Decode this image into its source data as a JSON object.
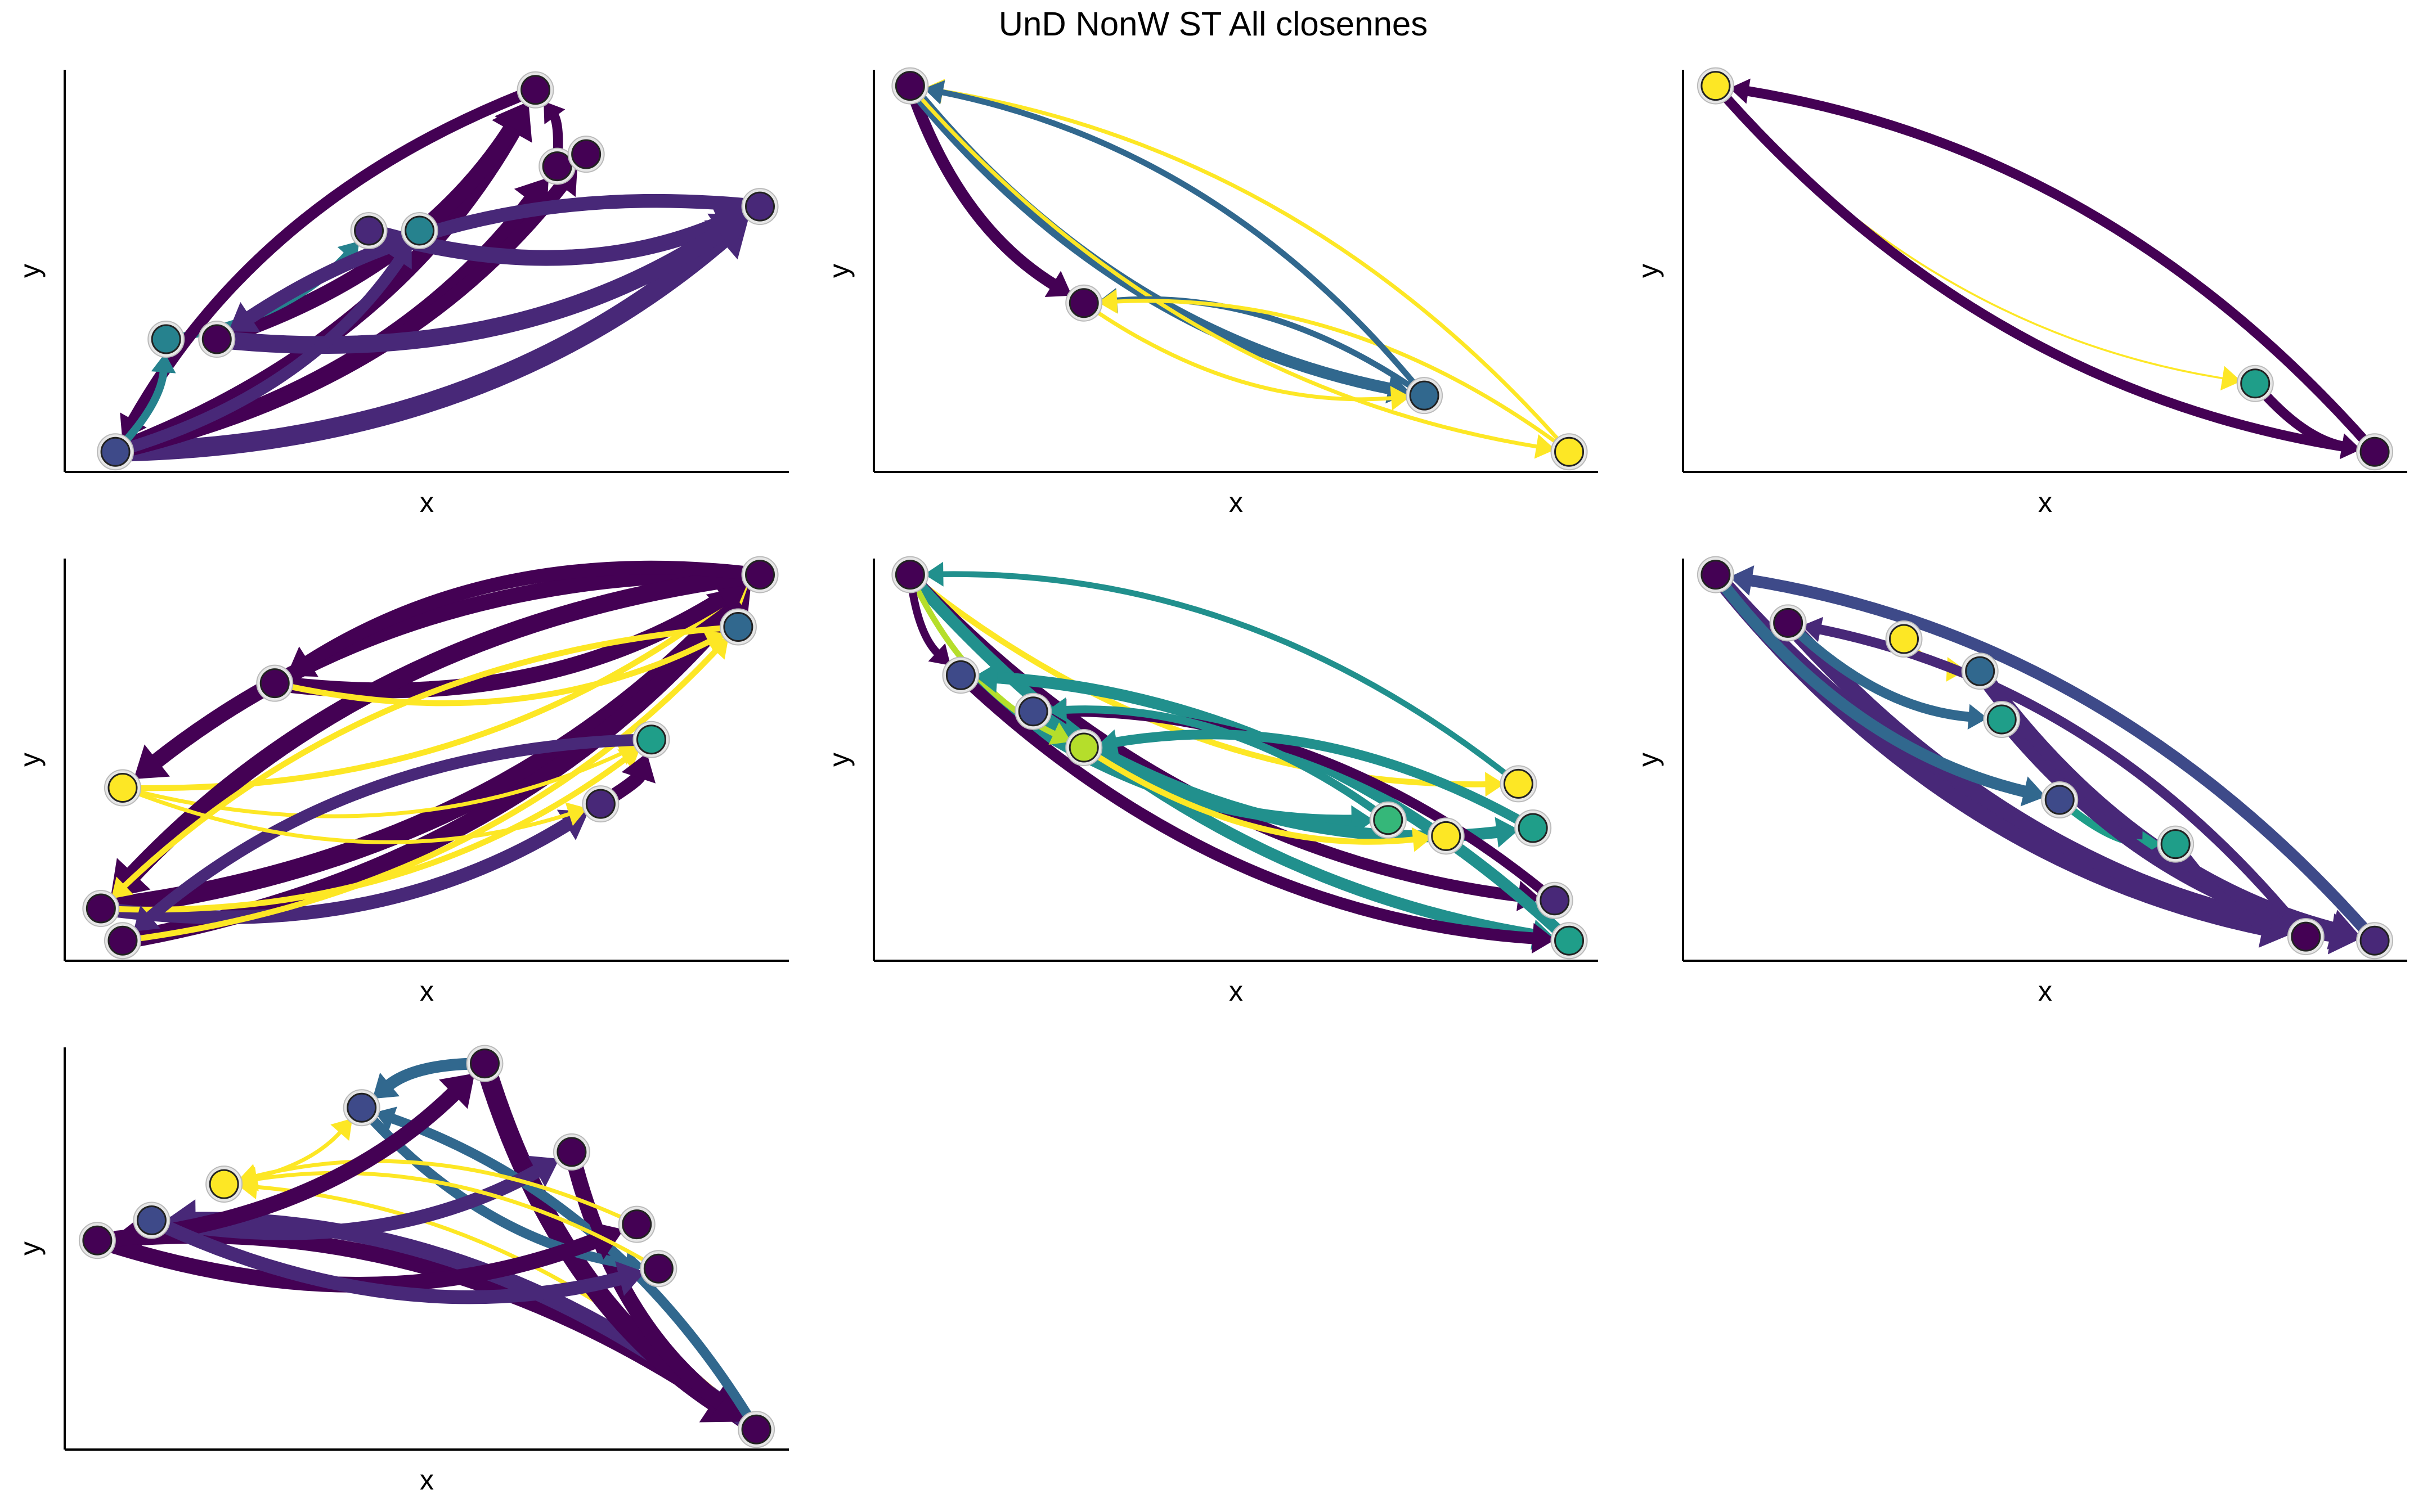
{
  "title": "UnD NonW ST All closennes",
  "chart_data": [
    {
      "type": "network",
      "x_label": "x",
      "y_label": "y",
      "nodes": [
        {
          "x": 0.07,
          "y": 0.05,
          "color": "#3e4a89"
        },
        {
          "x": 0.14,
          "y": 0.33,
          "color": "#26828e"
        },
        {
          "x": 0.21,
          "y": 0.33,
          "color": "#440154"
        },
        {
          "x": 0.42,
          "y": 0.6,
          "color": "#482878"
        },
        {
          "x": 0.49,
          "y": 0.6,
          "color": "#26828e"
        },
        {
          "x": 0.65,
          "y": 0.95,
          "color": "#440154"
        },
        {
          "x": 0.68,
          "y": 0.76,
          "color": "#440154"
        },
        {
          "x": 0.72,
          "y": 0.79,
          "color": "#440154"
        },
        {
          "x": 0.96,
          "y": 0.66,
          "color": "#482878"
        }
      ],
      "edges": [
        {
          "from": 0,
          "to": 5,
          "width": 9,
          "color": "#440154"
        },
        {
          "from": 0,
          "to": 8,
          "width": 10,
          "color": "#482878"
        },
        {
          "from": 0,
          "to": 6,
          "width": 8,
          "color": "#440154"
        },
        {
          "from": 2,
          "to": 5,
          "width": 8,
          "color": "#440154"
        },
        {
          "from": 1,
          "to": 3,
          "width": 4,
          "color": "#26828e"
        },
        {
          "from": 0,
          "to": 7,
          "width": 7,
          "color": "#440154"
        },
        {
          "from": 3,
          "to": 8,
          "width": 8,
          "color": "#482878"
        },
        {
          "from": 2,
          "to": 8,
          "width": 9,
          "color": "#482878"
        },
        {
          "from": 6,
          "to": 5,
          "width": 5,
          "color": "#440154"
        },
        {
          "from": 0,
          "to": 4,
          "width": 6,
          "color": "#482878"
        },
        {
          "from": 5,
          "to": 0,
          "width": 6,
          "color": "#440154"
        },
        {
          "from": 8,
          "to": 2,
          "width": 7,
          "color": "#482878"
        },
        {
          "from": 0,
          "to": 1,
          "width": 4,
          "color": "#26828e"
        }
      ]
    },
    {
      "type": "network",
      "x_label": "x",
      "y_label": "y",
      "nodes": [
        {
          "x": 0.05,
          "y": 0.96,
          "color": "#440154"
        },
        {
          "x": 0.29,
          "y": 0.42,
          "color": "#440154"
        },
        {
          "x": 0.76,
          "y": 0.19,
          "color": "#31688e"
        },
        {
          "x": 0.96,
          "y": 0.05,
          "color": "#fde725"
        }
      ],
      "edges": [
        {
          "from": 0,
          "to": 1,
          "width": 6,
          "color": "#440154"
        },
        {
          "from": 0,
          "to": 2,
          "width": 6,
          "color": "#31688e"
        },
        {
          "from": 3,
          "to": 0,
          "width": 2,
          "color": "#fde725"
        },
        {
          "from": 0,
          "to": 3,
          "width": 2,
          "color": "#fde725"
        },
        {
          "from": 2,
          "to": 1,
          "width": 3,
          "color": "#31688e"
        },
        {
          "from": 3,
          "to": 1,
          "width": 2,
          "color": "#fde725"
        },
        {
          "from": 1,
          "to": 2,
          "width": 2,
          "color": "#fde725"
        },
        {
          "from": 2,
          "to": 0,
          "width": 3,
          "color": "#31688e"
        }
      ]
    },
    {
      "type": "network",
      "x_label": "x",
      "y_label": "y",
      "nodes": [
        {
          "x": 0.045,
          "y": 0.96,
          "color": "#fde725"
        },
        {
          "x": 0.79,
          "y": 0.22,
          "color": "#1f9e89"
        },
        {
          "x": 0.955,
          "y": 0.05,
          "color": "#440154"
        }
      ],
      "edges": [
        {
          "from": 2,
          "to": 0,
          "width": 5,
          "color": "#440154"
        },
        {
          "from": 0,
          "to": 1,
          "width": 1,
          "color": "#fde725"
        },
        {
          "from": 1,
          "to": 2,
          "width": 5,
          "color": "#440154"
        },
        {
          "from": 0,
          "to": 2,
          "width": 5,
          "color": "#440154"
        }
      ]
    },
    {
      "type": "network",
      "x_label": "x",
      "y_label": "y",
      "nodes": [
        {
          "x": 0.96,
          "y": 0.96,
          "color": "#440154"
        },
        {
          "x": 0.93,
          "y": 0.83,
          "color": "#31688e"
        },
        {
          "x": 0.81,
          "y": 0.55,
          "color": "#1f9e89"
        },
        {
          "x": 0.74,
          "y": 0.39,
          "color": "#482878"
        },
        {
          "x": 0.29,
          "y": 0.69,
          "color": "#440154"
        },
        {
          "x": 0.08,
          "y": 0.43,
          "color": "#fde725"
        },
        {
          "x": 0.05,
          "y": 0.13,
          "color": "#440154"
        },
        {
          "x": 0.08,
          "y": 0.05,
          "color": "#440154"
        }
      ],
      "edges": [
        {
          "from": 6,
          "to": 0,
          "width": 10,
          "color": "#440154"
        },
        {
          "from": 7,
          "to": 0,
          "width": 9,
          "color": "#440154"
        },
        {
          "from": 5,
          "to": 0,
          "width": 3,
          "color": "#fde725"
        },
        {
          "from": 0,
          "to": 5,
          "width": 8,
          "color": "#440154"
        },
        {
          "from": 4,
          "to": 0,
          "width": 8,
          "color": "#440154"
        },
        {
          "from": 6,
          "to": 3,
          "width": 7,
          "color": "#482878"
        },
        {
          "from": 7,
          "to": 1,
          "width": 3,
          "color": "#fde725"
        },
        {
          "from": 6,
          "to": 2,
          "width": 3,
          "color": "#fde725"
        },
        {
          "from": 3,
          "to": 2,
          "width": 7,
          "color": "#440154"
        },
        {
          "from": 5,
          "to": 2,
          "width": 2,
          "color": "#fde725"
        },
        {
          "from": 0,
          "to": 6,
          "width": 9,
          "color": "#440154"
        },
        {
          "from": 0,
          "to": 4,
          "width": 7,
          "color": "#440154"
        },
        {
          "from": 2,
          "to": 7,
          "width": 6,
          "color": "#482878"
        },
        {
          "from": 1,
          "to": 6,
          "width": 3,
          "color": "#fde725"
        },
        {
          "from": 5,
          "to": 3,
          "width": 2,
          "color": "#fde725"
        },
        {
          "from": 4,
          "to": 1,
          "width": 3,
          "color": "#fde725"
        }
      ]
    },
    {
      "type": "network",
      "x_label": "x",
      "y_label": "y",
      "nodes": [
        {
          "x": 0.05,
          "y": 0.96,
          "color": "#440154"
        },
        {
          "x": 0.12,
          "y": 0.71,
          "color": "#3e4a89"
        },
        {
          "x": 0.22,
          "y": 0.62,
          "color": "#3e4a89"
        },
        {
          "x": 0.29,
          "y": 0.53,
          "color": "#b5de2b"
        },
        {
          "x": 0.71,
          "y": 0.35,
          "color": "#35b779"
        },
        {
          "x": 0.79,
          "y": 0.31,
          "color": "#fde725"
        },
        {
          "x": 0.89,
          "y": 0.44,
          "color": "#fde725"
        },
        {
          "x": 0.91,
          "y": 0.33,
          "color": "#1f9e89"
        },
        {
          "x": 0.94,
          "y": 0.15,
          "color": "#482878"
        },
        {
          "x": 0.96,
          "y": 0.05,
          "color": "#1f9e89"
        }
      ],
      "edges": [
        {
          "from": 0,
          "to": 6,
          "width": 3,
          "color": "#fde725"
        },
        {
          "from": 0,
          "to": 8,
          "width": 6,
          "color": "#440154"
        },
        {
          "from": 0,
          "to": 9,
          "width": 6,
          "color": "#21908d"
        },
        {
          "from": 1,
          "to": 4,
          "width": 6,
          "color": "#21908d"
        },
        {
          "from": 2,
          "to": 7,
          "width": 6,
          "color": "#21908d"
        },
        {
          "from": 3,
          "to": 5,
          "width": 3,
          "color": "#fde725"
        },
        {
          "from": 1,
          "to": 9,
          "width": 6,
          "color": "#440154"
        },
        {
          "from": 0,
          "to": 3,
          "width": 3,
          "color": "#b5de2b"
        },
        {
          "from": 9,
          "to": 1,
          "width": 6,
          "color": "#21908d"
        },
        {
          "from": 8,
          "to": 2,
          "width": 5,
          "color": "#440154"
        },
        {
          "from": 6,
          "to": 0,
          "width": 3,
          "color": "#21908d"
        },
        {
          "from": 4,
          "to": 2,
          "width": 4,
          "color": "#21908d"
        },
        {
          "from": 0,
          "to": 1,
          "width": 4,
          "color": "#440154"
        },
        {
          "from": 7,
          "to": 3,
          "width": 5,
          "color": "#21908d"
        }
      ]
    },
    {
      "type": "network",
      "x_label": "x",
      "y_label": "y",
      "nodes": [
        {
          "x": 0.045,
          "y": 0.96,
          "color": "#440154"
        },
        {
          "x": 0.145,
          "y": 0.84,
          "color": "#440154"
        },
        {
          "x": 0.305,
          "y": 0.8,
          "color": "#fde725"
        },
        {
          "x": 0.41,
          "y": 0.72,
          "color": "#31688e"
        },
        {
          "x": 0.44,
          "y": 0.6,
          "color": "#1f9e89"
        },
        {
          "x": 0.52,
          "y": 0.4,
          "color": "#3e4a89"
        },
        {
          "x": 0.68,
          "y": 0.29,
          "color": "#1f9e89"
        },
        {
          "x": 0.86,
          "y": 0.06,
          "color": "#440154"
        },
        {
          "x": 0.955,
          "y": 0.05,
          "color": "#482878"
        }
      ],
      "edges": [
        {
          "from": 0,
          "to": 8,
          "width": 8,
          "color": "#482878"
        },
        {
          "from": 0,
          "to": 7,
          "width": 8,
          "color": "#482878"
        },
        {
          "from": 1,
          "to": 8,
          "width": 8,
          "color": "#482878"
        },
        {
          "from": 0,
          "to": 5,
          "width": 6,
          "color": "#31688e"
        },
        {
          "from": 3,
          "to": 8,
          "width": 8,
          "color": "#482878"
        },
        {
          "from": 5,
          "to": 6,
          "width": 4,
          "color": "#1f9e89"
        },
        {
          "from": 4,
          "to": 8,
          "width": 6,
          "color": "#482878"
        },
        {
          "from": 8,
          "to": 0,
          "width": 6,
          "color": "#3e4a89"
        },
        {
          "from": 2,
          "to": 3,
          "width": 2,
          "color": "#fde725"
        },
        {
          "from": 1,
          "to": 4,
          "width": 5,
          "color": "#31688e"
        },
        {
          "from": 6,
          "to": 7,
          "width": 6,
          "color": "#482878"
        },
        {
          "from": 7,
          "to": 1,
          "width": 5,
          "color": "#482878"
        }
      ]
    },
    {
      "type": "network",
      "x_label": "x",
      "y_label": "y",
      "nodes": [
        {
          "x": 0.045,
          "y": 0.52,
          "color": "#440154"
        },
        {
          "x": 0.12,
          "y": 0.57,
          "color": "#3e4a89"
        },
        {
          "x": 0.22,
          "y": 0.66,
          "color": "#fde725"
        },
        {
          "x": 0.41,
          "y": 0.85,
          "color": "#3e4a89"
        },
        {
          "x": 0.58,
          "y": 0.96,
          "color": "#440154"
        },
        {
          "x": 0.7,
          "y": 0.74,
          "color": "#440154"
        },
        {
          "x": 0.79,
          "y": 0.56,
          "color": "#440154"
        },
        {
          "x": 0.82,
          "y": 0.45,
          "color": "#440154"
        },
        {
          "x": 0.955,
          "y": 0.05,
          "color": "#440154"
        }
      ],
      "edges": [
        {
          "from": 8,
          "to": 0,
          "width": 8,
          "color": "#440154"
        },
        {
          "from": 8,
          "to": 1,
          "width": 8,
          "color": "#482878"
        },
        {
          "from": 8,
          "to": 2,
          "width": 2,
          "color": "#fde725"
        },
        {
          "from": 4,
          "to": 8,
          "width": 10,
          "color": "#440154"
        },
        {
          "from": 5,
          "to": 8,
          "width": 8,
          "color": "#440154"
        },
        {
          "from": 8,
          "to": 3,
          "width": 5,
          "color": "#31688e"
        },
        {
          "from": 3,
          "to": 7,
          "width": 5,
          "color": "#31688e"
        },
        {
          "from": 0,
          "to": 6,
          "width": 8,
          "color": "#440154"
        },
        {
          "from": 1,
          "to": 5,
          "width": 7,
          "color": "#482878"
        },
        {
          "from": 2,
          "to": 3,
          "width": 2,
          "color": "#fde725"
        },
        {
          "from": 6,
          "to": 2,
          "width": 2,
          "color": "#fde725"
        },
        {
          "from": 7,
          "to": 2,
          "width": 2,
          "color": "#fde725"
        },
        {
          "from": 4,
          "to": 3,
          "width": 6,
          "color": "#31688e"
        },
        {
          "from": 0,
          "to": 4,
          "width": 8,
          "color": "#440154"
        },
        {
          "from": 1,
          "to": 7,
          "width": 7,
          "color": "#482878"
        }
      ]
    }
  ]
}
